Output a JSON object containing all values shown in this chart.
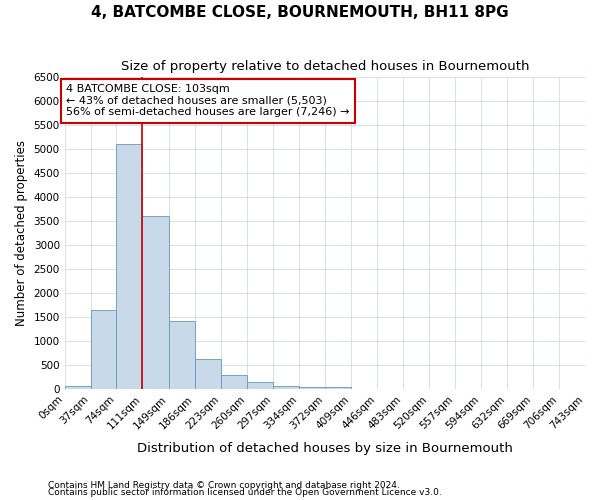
{
  "title": "4, BATCOMBE CLOSE, BOURNEMOUTH, BH11 8PG",
  "subtitle": "Size of property relative to detached houses in Bournemouth",
  "xlabel": "Distribution of detached houses by size in Bournemouth",
  "ylabel": "Number of detached properties",
  "bin_edges": [
    0,
    37,
    74,
    111,
    149,
    186,
    223,
    260,
    297,
    334,
    372,
    409,
    446,
    483,
    520,
    557,
    594,
    632,
    669,
    706,
    743
  ],
  "bin_counts": [
    75,
    1650,
    5100,
    3600,
    1425,
    625,
    300,
    150,
    75,
    50,
    50,
    0,
    0,
    0,
    0,
    0,
    0,
    0,
    0,
    0
  ],
  "bar_color": "#c8d9ea",
  "bar_edge_color": "#6699bb",
  "vline_x": 111,
  "vline_color": "#cc0000",
  "annotation_text": "4 BATCOMBE CLOSE: 103sqm\n← 43% of detached houses are smaller (5,503)\n56% of semi-detached houses are larger (7,246) →",
  "annotation_box_color": "#ffffff",
  "annotation_box_edge": "#cc0000",
  "ylim": [
    0,
    6500
  ],
  "yticks": [
    0,
    500,
    1000,
    1500,
    2000,
    2500,
    3000,
    3500,
    4000,
    4500,
    5000,
    5500,
    6000,
    6500
  ],
  "footer1": "Contains HM Land Registry data © Crown copyright and database right 2024.",
  "footer2": "Contains public sector information licensed under the Open Government Licence v3.0.",
  "bg_color": "#ffffff",
  "grid_color": "#c8d4e0",
  "title_fontsize": 11,
  "subtitle_fontsize": 9.5,
  "xlabel_fontsize": 9.5,
  "ylabel_fontsize": 8.5,
  "tick_label_fontsize": 7.5,
  "annotation_fontsize": 8,
  "footer_fontsize": 6.5
}
